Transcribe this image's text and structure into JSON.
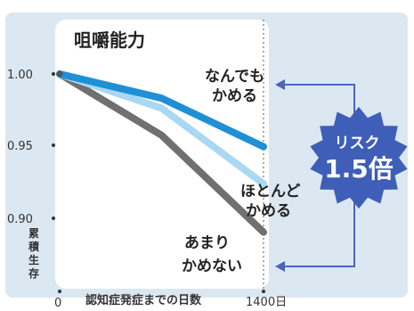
{
  "chart_data": {
    "type": "line",
    "title": "咀嚼能力",
    "xlabel": "認知症発症までの日数",
    "ylabel": "累積生存",
    "x_ticks": [
      "0",
      "1400日"
    ],
    "y_ticks": [
      "1.00",
      "0.95",
      "0.90"
    ],
    "xlim": [
      0,
      1400
    ],
    "ylim": [
      0.885,
      1.0
    ],
    "grid": false,
    "series": [
      {
        "name": "なんでもかめる",
        "color": "#1f8fd6",
        "x": [
          0,
          700,
          1400
        ],
        "y": [
          1.0,
          0.983,
          0.949
        ]
      },
      {
        "name": "ほとんどかめる",
        "color": "#a9d8f2",
        "x": [
          0,
          700,
          1400
        ],
        "y": [
          1.0,
          0.976,
          0.923
        ]
      },
      {
        "name": "あまりかめない",
        "color": "#707070",
        "x": [
          0,
          700,
          1400
        ],
        "y": [
          1.0,
          0.957,
          0.889
        ]
      }
    ],
    "labels": {
      "top": [
        "なんでも",
        "かめる"
      ],
      "mid": [
        "ほとんど",
        "かめる"
      ],
      "bottom": [
        "あまり",
        "かめない"
      ]
    },
    "risk": {
      "line1": "リスク",
      "line2": "1.5倍"
    },
    "colors": {
      "background_panel": "#dbe8f2",
      "plot_area": "#ffffff",
      "arrow": "#4a66b8",
      "badge": "#3f5eb7"
    }
  }
}
